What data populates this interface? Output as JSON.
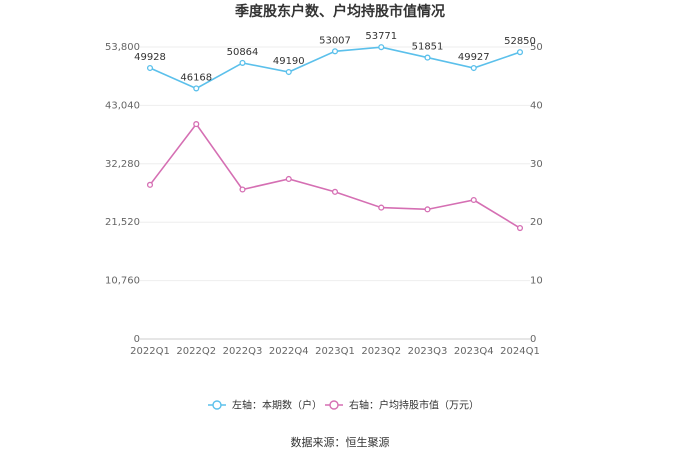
{
  "chart_data": {
    "type": "line",
    "title": "季度股东户数、户均持股市值情况",
    "categories": [
      "2022Q1",
      "2022Q2",
      "2022Q3",
      "2022Q4",
      "2023Q1",
      "2023Q2",
      "2023Q3",
      "2023Q4",
      "2024Q1"
    ],
    "left_axis": {
      "ylim": [
        0,
        53800
      ],
      "ticks": [
        "0",
        "10,760",
        "21,520",
        "32,280",
        "43,040",
        "53,800"
      ],
      "tick_values": [
        0,
        10760,
        21520,
        32280,
        43040,
        53800
      ]
    },
    "right_axis": {
      "ylim": [
        0,
        50
      ],
      "ticks": [
        "0",
        "10",
        "20",
        "30",
        "40",
        "50"
      ],
      "tick_values": [
        0,
        10,
        20,
        30,
        40,
        50
      ]
    },
    "series": [
      {
        "name": "左轴：本期数（户）",
        "axis": "left",
        "color": "#5bc0eb",
        "values": [
          49928,
          46168,
          50864,
          49190,
          53007,
          53771,
          51851,
          49927,
          52850
        ],
        "labels": [
          "49928",
          "46168",
          "50864",
          "49190",
          "53007",
          "53771",
          "51851",
          "49927",
          "52850"
        ]
      },
      {
        "name": "右轴：户均持股市值（万元）",
        "axis": "right",
        "color": "#d56fb3",
        "values": [
          26.4,
          36.8,
          25.6,
          27.4,
          25.2,
          22.5,
          22.2,
          23.8,
          19.0
        ]
      }
    ],
    "grid": true,
    "legend_position": "bottom",
    "source": "数据来源：恒生聚源"
  }
}
